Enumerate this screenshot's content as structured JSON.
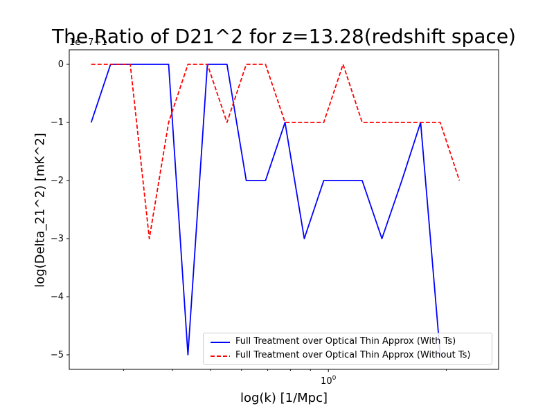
{
  "chart_data": {
    "type": "line",
    "title": "The Ratio of D21^2 for z=13.28(redshift space)",
    "xlabel": "log(k) [1/Mpc]",
    "ylabel": "log(Delta_21^2) [mK^2]",
    "x_scale": "log",
    "x_tick_labels": [
      "10^0"
    ],
    "y_offset_label": "1e−7+1",
    "ylim": [
      -5.25,
      0.25
    ],
    "y_ticks": [
      0,
      -1,
      -2,
      -3,
      -4,
      -5
    ],
    "y_tick_labels": [
      "0",
      "−1",
      "−2",
      "−3",
      "−4",
      "−5"
    ],
    "grid": false,
    "legend_position": "lower right",
    "x": [
      0.248,
      0.278,
      0.312,
      0.349,
      0.391,
      0.438,
      0.491,
      0.551,
      0.617,
      0.691,
      0.775,
      0.868,
      0.973,
      1.09,
      1.22,
      1.37,
      1.54,
      1.72,
      1.93,
      2.16,
      2.42
    ],
    "series": [
      {
        "name": "Full Treatment over Optical Thin Approx (With Ts)",
        "color": "#0000ff",
        "style": "solid",
        "values": [
          -1,
          0,
          0,
          0,
          0,
          -5,
          0,
          0,
          -2,
          -2,
          -1,
          -3,
          -2,
          -2,
          -2,
          -3,
          -2,
          -1,
          -5,
          null,
          null
        ]
      },
      {
        "name": "Full Treatment over Optical Thin Approx (Without Ts)",
        "color": "#ff0000",
        "style": "dashed",
        "values": [
          0,
          0,
          0,
          -3,
          -1,
          0,
          0,
          -1,
          0,
          0,
          -1,
          -1,
          -1,
          0,
          -1,
          -1,
          -1,
          -1,
          -1,
          -2,
          null
        ]
      }
    ]
  }
}
